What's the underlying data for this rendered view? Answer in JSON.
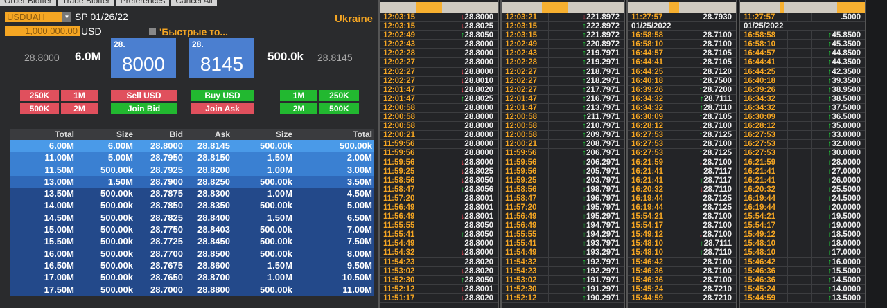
{
  "tabs": [
    "Order Blotter",
    "Trade Blotter",
    "Preferences",
    "Cancel All"
  ],
  "ticket": {
    "pair": "USDUAH",
    "settle": "SP 01/26/22",
    "amount": "1,000,000.00",
    "currency": "USD",
    "quick_label": "'Быстрые то...",
    "region": "Ukraine",
    "bid_price": "28.8000",
    "bid_size": "6.0M",
    "bid_big_prefix": "28.",
    "bid_big": "8000",
    "ask_big_prefix": "28.",
    "ask_big": "8145",
    "ask_size": "500.0k",
    "ask_price": "28.8145",
    "sell_sizes": [
      "250K",
      "1M",
      "500K",
      "2M"
    ],
    "sell_label": "Sell USD",
    "join_bid": "Join Bid",
    "buy_label": "Buy USD",
    "join_ask": "Join Ask",
    "buy_sizes": [
      "1M",
      "250K",
      "2M",
      "500K"
    ]
  },
  "book": {
    "headers": [
      "Total",
      "Size",
      "Bid",
      "Ask",
      "Size",
      "Total"
    ],
    "rows": [
      [
        "6.00M",
        "6.00M",
        "28.8000",
        "28.8145",
        "500.00k",
        "500.00k"
      ],
      [
        "11.00M",
        "5.00M",
        "28.7950",
        "28.8150",
        "1.50M",
        "2.00M"
      ],
      [
        "11.50M",
        "500.00k",
        "28.7925",
        "28.8200",
        "1.00M",
        "3.00M"
      ],
      [
        "13.00M",
        "1.50M",
        "28.7900",
        "28.8250",
        "500.00k",
        "3.50M"
      ],
      [
        "13.50M",
        "500.00k",
        "28.7875",
        "28.8300",
        "1.00M",
        "4.50M"
      ],
      [
        "14.00M",
        "500.00k",
        "28.7850",
        "28.8350",
        "500.00k",
        "5.00M"
      ],
      [
        "14.50M",
        "500.00k",
        "28.7825",
        "28.8400",
        "1.50M",
        "6.50M"
      ],
      [
        "15.00M",
        "500.00k",
        "28.7750",
        "28.8403",
        "500.00k",
        "7.00M"
      ],
      [
        "15.50M",
        "500.00k",
        "28.7725",
        "28.8450",
        "500.00k",
        "7.50M"
      ],
      [
        "16.00M",
        "500.00k",
        "28.7700",
        "28.8500",
        "500.00k",
        "8.00M"
      ],
      [
        "16.50M",
        "500.00k",
        "28.7675",
        "28.8600",
        "1.50M",
        "9.50M"
      ],
      [
        "17.00M",
        "500.00k",
        "28.7650",
        "28.8700",
        "1.00M",
        "10.50M"
      ],
      [
        "17.50M",
        "500.00k",
        "28.7000",
        "28.8800",
        "500.00k",
        "11.00M"
      ]
    ]
  },
  "colors": {
    "orange": "#f5a623",
    "up": "#22c03a",
    "down": "#e04050",
    "sell": "#e0505d",
    "buy": "#22b830",
    "book_top": "#4a9ae8",
    "book": "#23498a"
  },
  "time_sales": [
    {
      "rows": [
        [
          "12:03:15",
          "d",
          "28.8000"
        ],
        [
          "12:03:15",
          "d",
          "28.8025"
        ],
        [
          "12:02:49",
          "u",
          "28.8050"
        ],
        [
          "12:02:43",
          "",
          "28.8000"
        ],
        [
          "12:02:28",
          "",
          "28.8000"
        ],
        [
          "12:02:27",
          "",
          "28.8000"
        ],
        [
          "12:02:27",
          "d",
          "28.8000"
        ],
        [
          "12:02:27",
          "d",
          "28.8010"
        ],
        [
          "12:01:47",
          "d",
          "28.8020"
        ],
        [
          "12:01:47",
          "u",
          "28.8025"
        ],
        [
          "12:00:58",
          "",
          "28.8000"
        ],
        [
          "12:00:58",
          "",
          "28.8000"
        ],
        [
          "12:00:58",
          "",
          "28.8000"
        ],
        [
          "12:00:21",
          "",
          "28.8000"
        ],
        [
          "11:59:56",
          "",
          "28.8000"
        ],
        [
          "11:59:56",
          "",
          "28.8000"
        ],
        [
          "11:59:56",
          "d",
          "28.8000"
        ],
        [
          "11:59:25",
          "d",
          "28.8025"
        ],
        [
          "11:58:56",
          "d",
          "28.8050"
        ],
        [
          "11:58:47",
          "u",
          "28.8056"
        ],
        [
          "11:57:20",
          "",
          "28.8001"
        ],
        [
          "11:56:49",
          "",
          "28.8001"
        ],
        [
          "11:56:49",
          "d",
          "28.8001"
        ],
        [
          "11:55:55",
          "",
          "28.8050"
        ],
        [
          "11:55:41",
          "u",
          "28.8050"
        ],
        [
          "11:54:49",
          "",
          "28.8000"
        ],
        [
          "11:54:32",
          "d",
          "28.8000"
        ],
        [
          "11:54:23",
          "",
          "28.8020"
        ],
        [
          "11:53:02",
          "d",
          "28.8020"
        ],
        [
          "11:52:30",
          "u",
          "28.8050"
        ],
        [
          "11:52:12",
          "d",
          "28.8001"
        ],
        [
          "11:51:17",
          "d",
          "28.8020"
        ]
      ]
    },
    {
      "rows": [
        [
          "12:03:21",
          "d",
          "221.8972"
        ],
        [
          "12:03:15",
          "u",
          "222.8972"
        ],
        [
          "12:03:15",
          "u",
          "221.8972"
        ],
        [
          "12:02:49",
          "u",
          "220.8972"
        ],
        [
          "12:02:43",
          "u",
          "219.7971"
        ],
        [
          "12:02:28",
          "u",
          "219.2971"
        ],
        [
          "12:02:27",
          "u",
          "218.7971"
        ],
        [
          "12:02:27",
          "u",
          "218.2971"
        ],
        [
          "12:02:27",
          "u",
          "217.7971"
        ],
        [
          "12:01:47",
          "u",
          "216.7971"
        ],
        [
          "12:01:47",
          "u",
          "213.7971"
        ],
        [
          "12:00:58",
          "u",
          "211.7971"
        ],
        [
          "12:00:58",
          "u",
          "210.7971"
        ],
        [
          "12:00:58",
          "u",
          "209.7971"
        ],
        [
          "12:00:21",
          "u",
          "208.7971"
        ],
        [
          "11:59:56",
          "u",
          "206.7971"
        ],
        [
          "11:59:56",
          "u",
          "206.2971"
        ],
        [
          "11:59:56",
          "u",
          "205.7971"
        ],
        [
          "11:59:25",
          "u",
          "203.7971"
        ],
        [
          "11:58:56",
          "u",
          "198.7971"
        ],
        [
          "11:58:47",
          "u",
          "196.7971"
        ],
        [
          "11:57:20",
          "u",
          "195.7971"
        ],
        [
          "11:56:49",
          "u",
          "195.2971"
        ],
        [
          "11:56:49",
          "u",
          "194.7971"
        ],
        [
          "11:55:55",
          "u",
          "194.2971"
        ],
        [
          "11:55:41",
          "u",
          "193.7971"
        ],
        [
          "11:54:49",
          "u",
          "193.2971"
        ],
        [
          "11:54:32",
          "u",
          "192.7971"
        ],
        [
          "11:54:23",
          "u",
          "192.2971"
        ],
        [
          "11:53:02",
          "u",
          "191.7971"
        ],
        [
          "11:52:30",
          "u",
          "191.2971"
        ],
        [
          "11:52:12",
          "u",
          "190.2971"
        ]
      ]
    },
    {
      "rows": [
        [
          "11:27:57",
          "",
          "28.7930"
        ],
        [
          "01/25/2022"
        ],
        [
          "16:58:58",
          "",
          "28.7100"
        ],
        [
          "16:58:10",
          "d",
          "28.7100"
        ],
        [
          "16:44:57",
          "",
          "28.7105"
        ],
        [
          "16:44:41",
          "d",
          "28.7105"
        ],
        [
          "16:44:25",
          "d",
          "28.7120"
        ],
        [
          "16:40:18",
          "u",
          "28.7500"
        ],
        [
          "16:39:26",
          "u",
          "28.7200"
        ],
        [
          "16:34:32",
          "u",
          "28.7111"
        ],
        [
          "16:34:32",
          "u",
          "28.7110"
        ],
        [
          "16:30:09",
          "u",
          "28.7105"
        ],
        [
          "16:28:12",
          "d",
          "28.7100"
        ],
        [
          "16:27:53",
          "u",
          "28.7125"
        ],
        [
          "16:27:53",
          "d",
          "28.7100"
        ],
        [
          "16:27:53",
          "u",
          "28.7125"
        ],
        [
          "16:21:59",
          "d",
          "28.7100"
        ],
        [
          "16:21:41",
          "",
          "28.7117"
        ],
        [
          "16:21:41",
          "u",
          "28.7117"
        ],
        [
          "16:20:32",
          "d",
          "28.7110"
        ],
        [
          "16:19:44",
          "",
          "28.7125"
        ],
        [
          "16:19:44",
          "u",
          "28.7125"
        ],
        [
          "15:54:21",
          "",
          "28.7100"
        ],
        [
          "15:54:17",
          "",
          "28.7100"
        ],
        [
          "15:49:12",
          "d",
          "28.7100"
        ],
        [
          "15:48:10",
          "u",
          "28.7111"
        ],
        [
          "15:48:10",
          "u",
          "28.7110"
        ],
        [
          "15:46:42",
          "",
          "28.7100"
        ],
        [
          "15:46:36",
          "",
          "28.7100"
        ],
        [
          "15:46:36",
          "d",
          "28.7100"
        ],
        [
          "15:45:24",
          "",
          "28.7210"
        ],
        [
          "15:44:59",
          "",
          "28.7210"
        ]
      ]
    },
    {
      "rows": [
        [
          "11:27:57",
          "",
          ".5000"
        ],
        [
          "01/25/2022"
        ],
        [
          "16:58:58",
          "u",
          "45.8500"
        ],
        [
          "16:58:10",
          "u",
          "45.3500"
        ],
        [
          "16:44:57",
          "u",
          "44.8500"
        ],
        [
          "16:44:41",
          "u",
          "44.3500"
        ],
        [
          "16:44:25",
          "u",
          "42.3500"
        ],
        [
          "16:40:18",
          "u",
          "39.3500"
        ],
        [
          "16:39:26",
          "u",
          "38.9500"
        ],
        [
          "16:34:32",
          "u",
          "38.5000"
        ],
        [
          "16:34:32",
          "u",
          "37.5000"
        ],
        [
          "16:30:09",
          "u",
          "36.5000"
        ],
        [
          "16:28:12",
          "u",
          "35.0000"
        ],
        [
          "16:27:53",
          "u",
          "33.0000"
        ],
        [
          "16:27:53",
          "u",
          "32.0000"
        ],
        [
          "16:27:53",
          "u",
          "30.0000"
        ],
        [
          "16:21:59",
          "u",
          "28.0000"
        ],
        [
          "16:21:41",
          "u",
          "27.0000"
        ],
        [
          "16:21:41",
          "u",
          "26.0000"
        ],
        [
          "16:20:32",
          "u",
          "25.5000"
        ],
        [
          "16:19:44",
          "u",
          "24.5000"
        ],
        [
          "16:19:44",
          "u",
          "20.0000"
        ],
        [
          "15:54:21",
          "u",
          "19.5000"
        ],
        [
          "15:54:17",
          "u",
          "19.0000"
        ],
        [
          "15:49:12",
          "u",
          "18.5000"
        ],
        [
          "15:48:10",
          "u",
          "18.0000"
        ],
        [
          "15:48:10",
          "u",
          "17.0000"
        ],
        [
          "15:46:42",
          "u",
          "16.0000"
        ],
        [
          "15:46:36",
          "u",
          "15.5000"
        ],
        [
          "15:46:36",
          "u",
          "14.5000"
        ],
        [
          "15:45:24",
          "u",
          "14.0000"
        ],
        [
          "15:44:59",
          "u",
          "13.5000"
        ]
      ]
    }
  ]
}
